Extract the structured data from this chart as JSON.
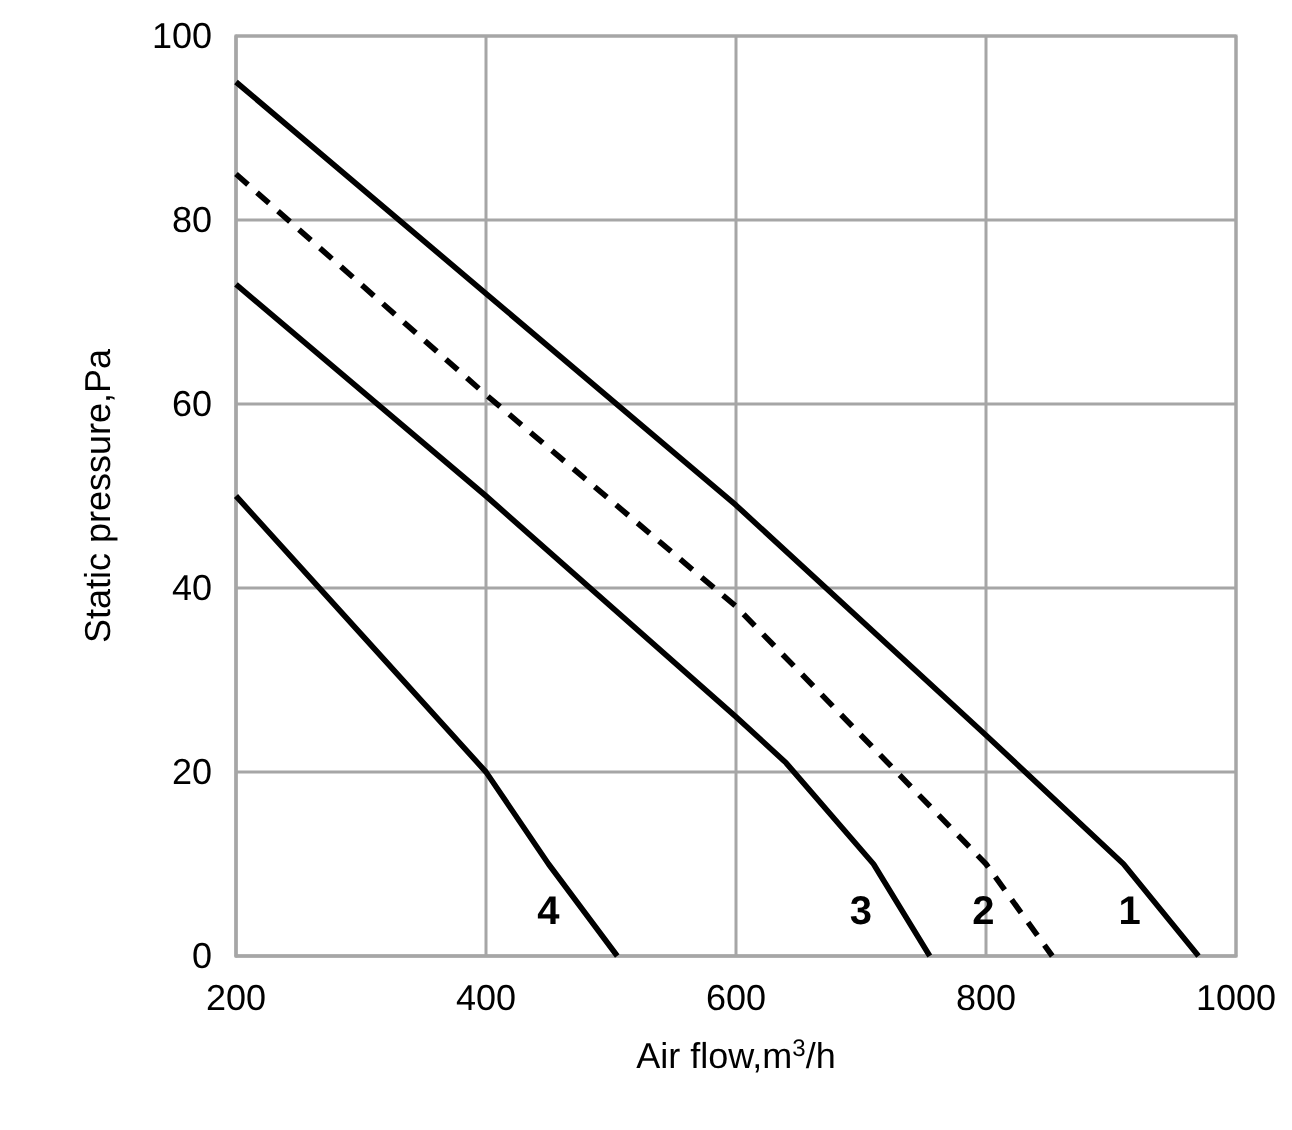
{
  "chart_data": {
    "type": "line",
    "xlabel": "Air flow,m$^{3}$/h",
    "ylabel": "Static pressure,Pa",
    "xlim": [
      200,
      1000
    ],
    "xticks": [
      200,
      400,
      600,
      800,
      1000
    ],
    "ylim": [
      0,
      100
    ],
    "yticks": [
      0,
      20,
      40,
      60,
      80,
      100
    ],
    "grid": true,
    "marker": "none",
    "series": [
      {
        "name": "1",
        "color": "#000000",
        "line_style": "solid",
        "x": [
          200,
          400,
          600,
          800,
          910,
          970
        ],
        "values": [
          95,
          72,
          49,
          24,
          10,
          0
        ]
      },
      {
        "name": "2",
        "color": "#000000",
        "line_style": "dashed",
        "x": [
          200,
          400,
          600,
          700,
          800,
          853
        ],
        "values": [
          85,
          61,
          38,
          24,
          10,
          0
        ]
      },
      {
        "name": "3",
        "color": "#000000",
        "line_style": "solid",
        "x": [
          200,
          400,
          600,
          640,
          710,
          755
        ],
        "values": [
          73,
          50,
          26,
          21,
          10,
          0
        ]
      },
      {
        "name": "4",
        "color": "#000000",
        "line_style": "solid",
        "x": [
          200,
          300,
          400,
          450,
          505
        ],
        "values": [
          50,
          35,
          20,
          10,
          0
        ]
      }
    ]
  }
}
